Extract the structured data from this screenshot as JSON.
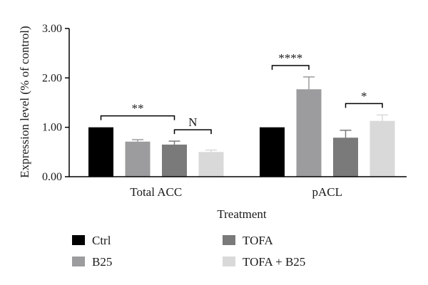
{
  "chart_data": {
    "type": "bar",
    "title": "",
    "xlabel": "Treatment",
    "ylabel": "Expression level (% of control)",
    "ylim": [
      0,
      3
    ],
    "yticks": [
      "0.00",
      "1.00",
      "2.00",
      "3.00"
    ],
    "categories": [
      "Total ACC",
      "pACL"
    ],
    "series": [
      {
        "name": "Ctrl",
        "values": [
          1.0,
          1.0
        ],
        "errors": [
          0.0,
          0.0
        ],
        "color": "#000000"
      },
      {
        "name": "B25",
        "values": [
          0.71,
          1.77
        ],
        "errors": [
          0.04,
          0.25
        ],
        "color": "#9c9c9e"
      },
      {
        "name": "TOFA",
        "values": [
          0.65,
          0.79
        ],
        "errors": [
          0.07,
          0.15
        ],
        "color": "#7a7a7a"
      },
      {
        "name": "TOFA + B25",
        "values": [
          0.5,
          1.13
        ],
        "errors": [
          0.04,
          0.12
        ],
        "color": "#d9d9d9"
      }
    ],
    "significance": [
      {
        "category": 0,
        "from_series": 0,
        "to_series": 2,
        "label": "**"
      },
      {
        "category": 0,
        "from_series": 2,
        "to_series": 3,
        "label": "N"
      },
      {
        "category": 1,
        "from_series": 0,
        "to_series": 1,
        "label": "****"
      },
      {
        "category": 1,
        "from_series": 2,
        "to_series": 3,
        "label": "*"
      }
    ],
    "grid": false,
    "legend_position": "bottom"
  }
}
